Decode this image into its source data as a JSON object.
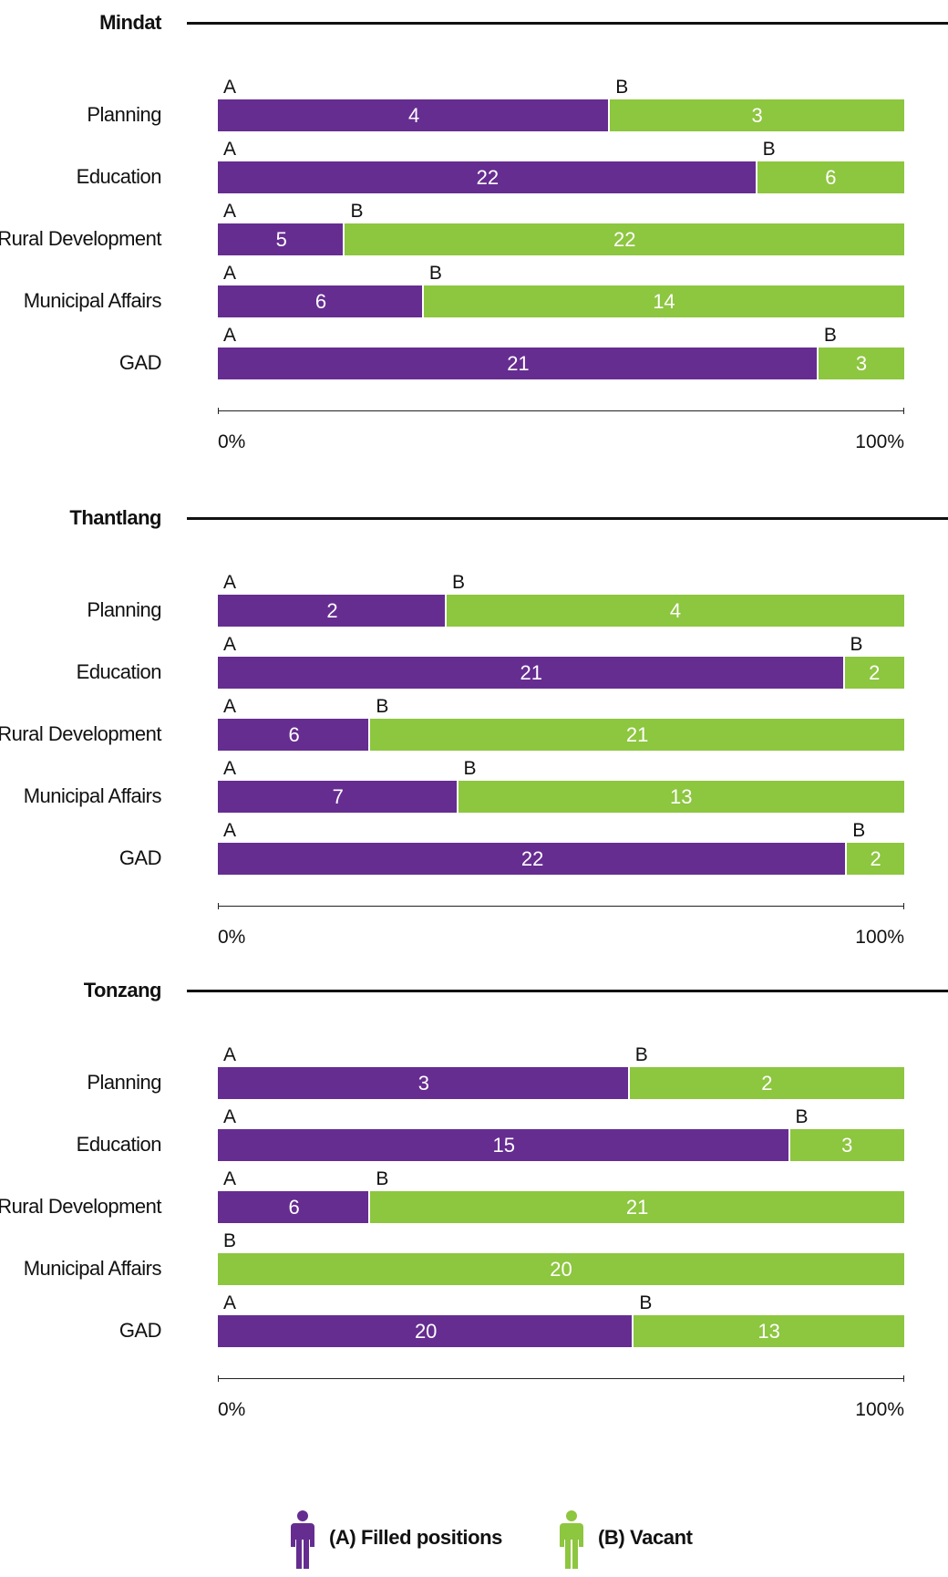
{
  "chart_data": [
    {
      "type": "bar",
      "stacked": "percent",
      "orientation": "horizontal",
      "title": "Mindat",
      "categories": [
        "Planning",
        "Education",
        "Rural Development",
        "Municipal Affairs",
        "GAD"
      ],
      "series": [
        {
          "name": "(A) Filled positions",
          "mark": "A",
          "values": [
            4,
            22,
            5,
            6,
            21
          ]
        },
        {
          "name": "(B) Vacant",
          "mark": "B",
          "values": [
            3,
            6,
            22,
            14,
            3
          ]
        }
      ],
      "axis": {
        "min_label": "0%",
        "max_label": "100%"
      }
    },
    {
      "type": "bar",
      "stacked": "percent",
      "orientation": "horizontal",
      "title": "Thantlang",
      "categories": [
        "Planning",
        "Education",
        "Rural Development",
        "Municipal Affairs",
        "GAD"
      ],
      "series": [
        {
          "name": "(A) Filled positions",
          "mark": "A",
          "values": [
            2,
            21,
            6,
            7,
            22
          ]
        },
        {
          "name": "(B) Vacant",
          "mark": "B",
          "values": [
            4,
            2,
            21,
            13,
            2
          ]
        }
      ],
      "axis": {
        "min_label": "0%",
        "max_label": "100%"
      }
    },
    {
      "type": "bar",
      "stacked": "percent",
      "orientation": "horizontal",
      "title": "Tonzang",
      "categories": [
        "Planning",
        "Education",
        "Rural Development",
        "Municipal Affairs",
        "GAD"
      ],
      "series": [
        {
          "name": "(A) Filled positions",
          "mark": "A",
          "values": [
            3,
            15,
            6,
            0,
            20
          ]
        },
        {
          "name": "(B) Vacant",
          "mark": "B",
          "values": [
            2,
            3,
            21,
            20,
            13
          ]
        }
      ],
      "axis": {
        "min_label": "0%",
        "max_label": "100%"
      }
    }
  ],
  "legend": {
    "items": [
      {
        "label": "(A) Filled positions",
        "color": "#662d91",
        "icon": "person-icon"
      },
      {
        "label": "(B) Vacant",
        "color": "#8dc63f",
        "icon": "person-icon"
      }
    ]
  },
  "colors": {
    "filled": "#662d91",
    "vacant": "#8dc63f",
    "text": "#111111"
  }
}
